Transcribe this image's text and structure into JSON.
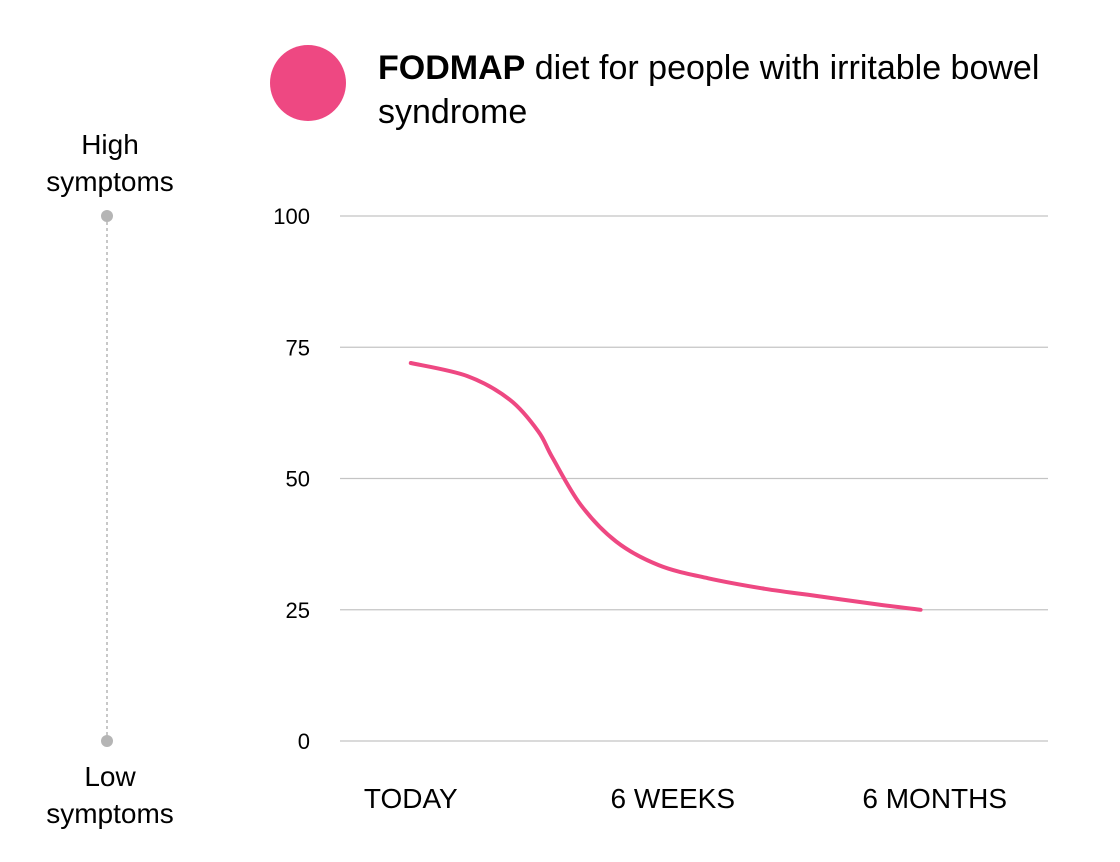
{
  "legend": {
    "title_bold": "FODMAP",
    "title_rest": " diet for people with irritable bowel syndrome",
    "color": "#ee4882"
  },
  "symptom_scale": {
    "high_label": "High symptoms",
    "low_label": "Low symptoms",
    "color": "#b5b5b5"
  },
  "chart_data": {
    "type": "line",
    "title": "FODMAP diet for people with irritable bowel syndrome",
    "xlabel": "",
    "ylabel": "",
    "ylim": [
      0,
      100
    ],
    "yticks": [
      0,
      25,
      50,
      75,
      100
    ],
    "xticks": [
      "TODAY",
      "6 WEEKS",
      "6 MONTHS"
    ],
    "grid": true,
    "x_domain": [
      0,
      1
    ],
    "xtick_positions": [
      0.1,
      0.47,
      0.84
    ],
    "series": [
      {
        "name": "FODMAP diet for people with irritable bowel syndrome",
        "color": "#ee4882",
        "x": [
          0.1,
          0.18,
          0.24,
          0.28,
          0.3,
          0.34,
          0.39,
          0.45,
          0.52,
          0.6,
          0.68,
          0.76,
          0.82
        ],
        "y": [
          72,
          69.5,
          65,
          59,
          54,
          45,
          38,
          33.5,
          31,
          29,
          27.5,
          26,
          25
        ]
      }
    ]
  }
}
